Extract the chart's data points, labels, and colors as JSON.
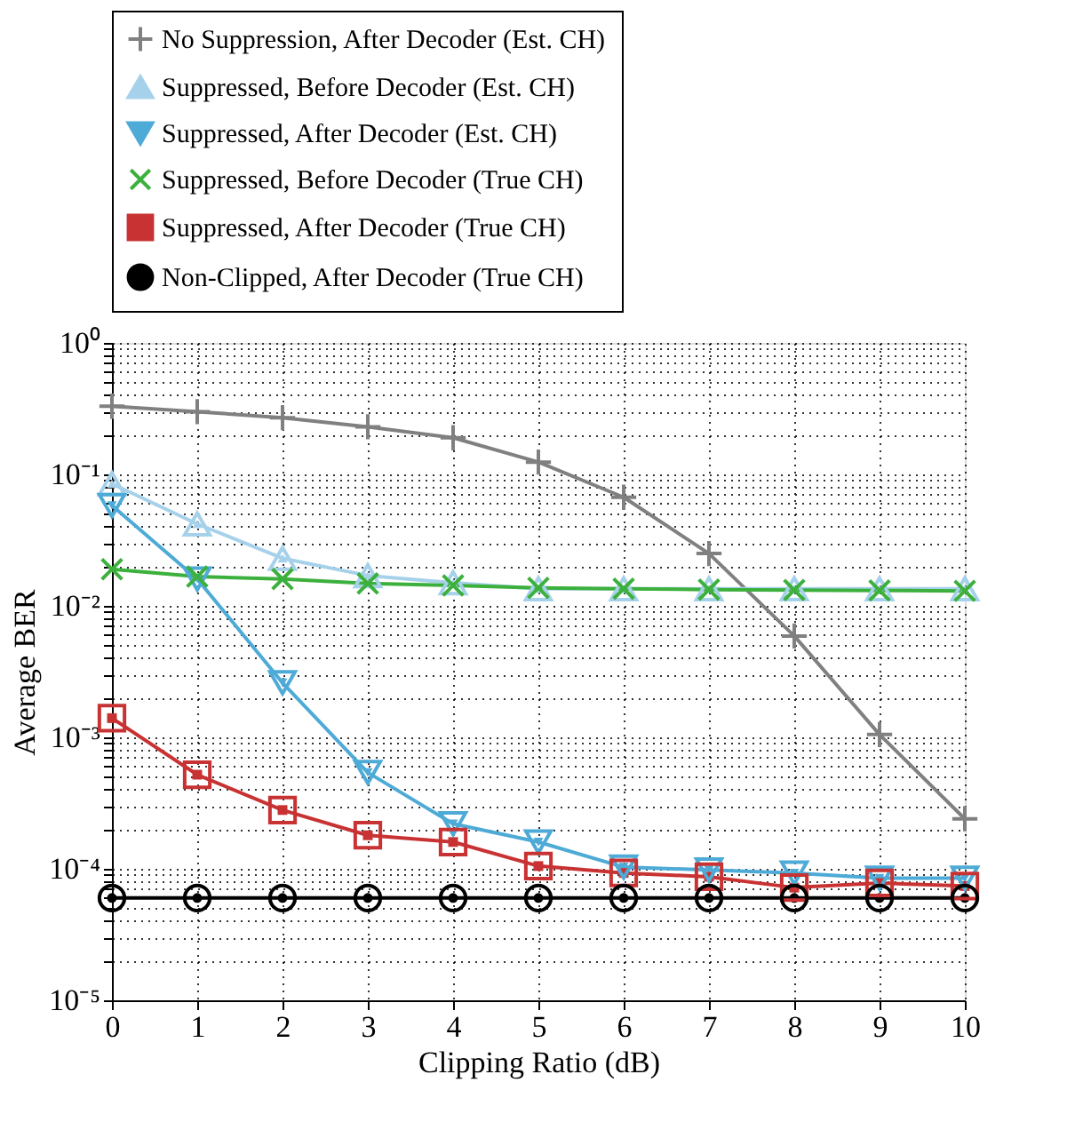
{
  "chart_data": {
    "type": "line",
    "xlabel": "Clipping Ratio (dB)",
    "ylabel": "Average BER",
    "x": [
      0,
      1,
      2,
      3,
      4,
      5,
      6,
      7,
      8,
      9,
      10
    ],
    "series": [
      {
        "name": "No Suppression, After Decoder (Est. CH)",
        "color": "#808080",
        "marker": "cross",
        "values": [
          0.33,
          0.3,
          0.27,
          0.23,
          0.19,
          0.124,
          0.067,
          0.025,
          0.0059,
          0.00105,
          0.00024
        ]
      },
      {
        "name": "Suppressed, Before Decoder (Est. CH)",
        "color": "#a6d1ea",
        "marker": "triangle",
        "values": [
          0.085,
          0.042,
          0.023,
          0.017,
          0.015,
          0.0135,
          0.0135,
          0.0135,
          0.0135,
          0.0135,
          0.0135
        ]
      },
      {
        "name": "Suppressed, After Decoder (Est. CH)",
        "color": "#4eaad6",
        "marker": "triangle-down",
        "values": [
          0.058,
          0.016,
          0.0026,
          0.00054,
          0.00022,
          0.00016,
          0.000103,
          9.8e-05,
          9.3e-05,
          8.5e-05,
          8.5e-05
        ]
      },
      {
        "name": "Suppressed, Before Decoder (True CH)",
        "color": "#3cb03c",
        "marker": "x",
        "values": [
          0.019,
          0.0167,
          0.016,
          0.0148,
          0.0143,
          0.0137,
          0.0135,
          0.0133,
          0.0132,
          0.0131,
          0.013
        ]
      },
      {
        "name": "Suppressed, After Decoder (True CH)",
        "color": "#c83232",
        "marker": "square",
        "values": [
          0.0014,
          0.00052,
          0.00028,
          0.00018,
          0.00016,
          0.000105,
          9.3e-05,
          8.7e-05,
          7.2e-05,
          7.8e-05,
          7.4e-05
        ]
      },
      {
        "name": "Non-Clipped, After Decoder (True CH)",
        "color": "#000000",
        "marker": "circle",
        "values": [
          6e-05,
          6e-05,
          6e-05,
          6e-05,
          6e-05,
          6e-05,
          6e-05,
          6e-05,
          6e-05,
          6e-05,
          6e-05
        ]
      }
    ],
    "xlim": [
      0,
      10
    ],
    "xticks": [
      0,
      1,
      2,
      3,
      4,
      5,
      6,
      7,
      8,
      9,
      10
    ],
    "log": "y",
    "ylim": [
      1e-05,
      1
    ],
    "yticks": [
      {
        "value": 1e-05,
        "label": "10⁻⁵"
      },
      {
        "value": 2e-05,
        "label": null
      },
      {
        "value": 3e-05,
        "label": null
      },
      {
        "value": 4e-05,
        "label": null
      },
      {
        "value": 5e-05,
        "label": null
      },
      {
        "value": 6e-05,
        "label": null
      },
      {
        "value": 7e-05,
        "label": null
      },
      {
        "value": 8e-05,
        "label": null
      },
      {
        "value": 9e-05,
        "label": null
      },
      {
        "value": 0.0001,
        "label": "10⁻⁴"
      },
      {
        "value": 0.0002,
        "label": null
      },
      {
        "value": 0.0003,
        "label": null
      },
      {
        "value": 0.0004,
        "label": null
      },
      {
        "value": 0.0005,
        "label": null
      },
      {
        "value": 0.0006,
        "label": null
      },
      {
        "value": 0.0007,
        "label": null
      },
      {
        "value": 0.0008,
        "label": null
      },
      {
        "value": 0.0009,
        "label": null
      },
      {
        "value": 0.001,
        "label": "10⁻³"
      },
      {
        "value": 0.002,
        "label": null
      },
      {
        "value": 0.003,
        "label": null
      },
      {
        "value": 0.004,
        "label": null
      },
      {
        "value": 0.005,
        "label": null
      },
      {
        "value": 0.006,
        "label": null
      },
      {
        "value": 0.007,
        "label": null
      },
      {
        "value": 0.008,
        "label": null
      },
      {
        "value": 0.009,
        "label": null
      },
      {
        "value": 0.01,
        "label": "10⁻²"
      },
      {
        "value": 0.02,
        "label": null
      },
      {
        "value": 0.03,
        "label": null
      },
      {
        "value": 0.04,
        "label": null
      },
      {
        "value": 0.05,
        "label": null
      },
      {
        "value": 0.06,
        "label": null
      },
      {
        "value": 0.07,
        "label": null
      },
      {
        "value": 0.08,
        "label": null
      },
      {
        "value": 0.09,
        "label": null
      },
      {
        "value": 0.1,
        "label": "10⁻¹"
      },
      {
        "value": 0.2,
        "label": null
      },
      {
        "value": 0.3,
        "label": null
      },
      {
        "value": 0.4,
        "label": null
      },
      {
        "value": 0.5,
        "label": null
      },
      {
        "value": 0.6,
        "label": null
      },
      {
        "value": 0.7,
        "label": null
      },
      {
        "value": 0.8,
        "label": null
      },
      {
        "value": 0.9,
        "label": null
      },
      {
        "value": 1,
        "label": "10⁰"
      }
    ],
    "grid": true,
    "legend": "top",
    "line_style": "solid"
  }
}
